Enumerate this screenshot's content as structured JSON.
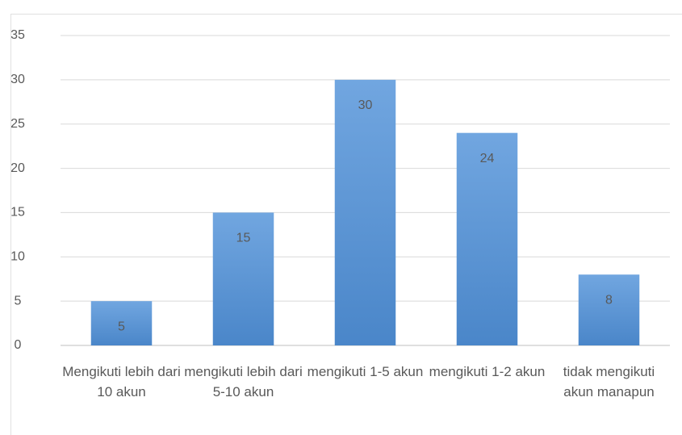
{
  "chart_data": {
    "type": "bar",
    "categories": [
      "Mengikuti lebih dari 10 akun",
      "mengikuti lebih dari 5-10 akun",
      "mengikuti 1-5 akun",
      "mengikuti 1-2 akun",
      "tidak mengikuti akun manapun"
    ],
    "values": [
      5,
      15,
      30,
      24,
      8
    ],
    "color": "#5b9bd5",
    "ylim": [
      0,
      35
    ],
    "yticks": [
      0,
      5,
      10,
      15,
      20,
      25,
      30,
      35
    ],
    "grid": true
  }
}
